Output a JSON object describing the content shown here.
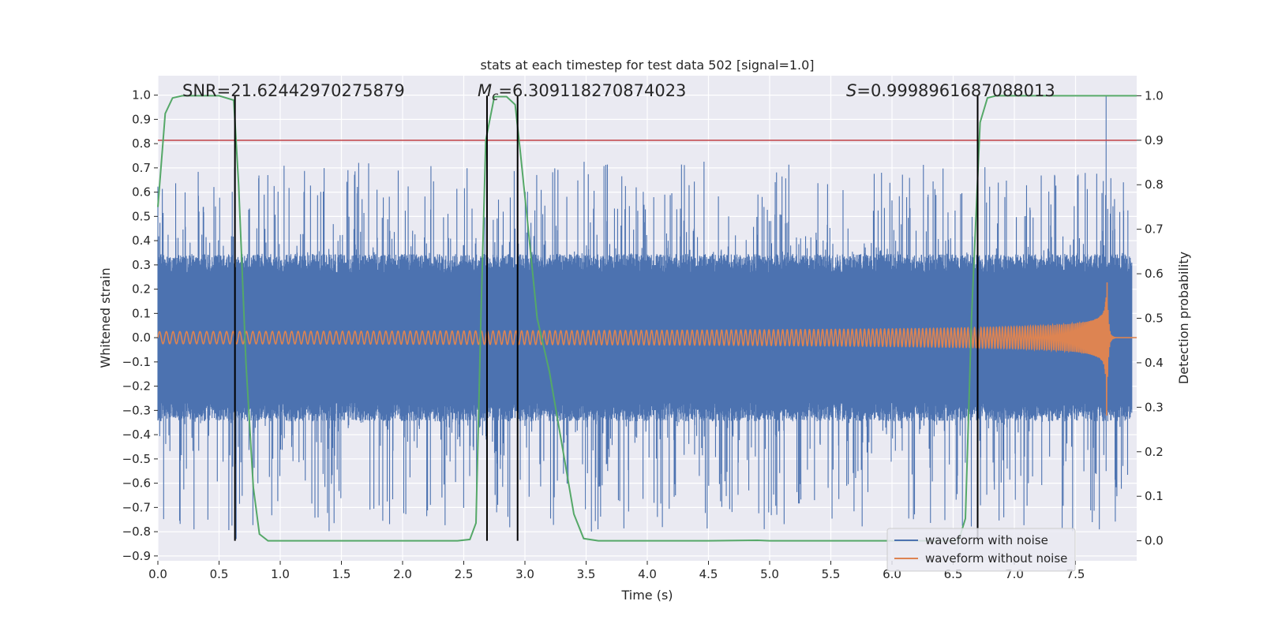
{
  "chart_data": {
    "type": "line",
    "title": "stats at each timestep for test data 502 [signal=1.0]",
    "xlabel": "Time (s)",
    "ylabel": "Whitened strain",
    "y2label": "Detection probability",
    "xlim": [
      0.0,
      8.0
    ],
    "ylim": [
      -0.92,
      1.08
    ],
    "y2lim": [
      -0.045,
      1.045
    ],
    "grid": true,
    "legend_position": "lower-right",
    "x_ticks": [
      "0.0",
      "0.5",
      "1.0",
      "1.5",
      "2.0",
      "2.5",
      "3.0",
      "3.5",
      "4.0",
      "4.5",
      "5.0",
      "5.5",
      "6.0",
      "6.5",
      "7.0",
      "7.5"
    ],
    "y_ticks": [
      "1.0",
      "0.9",
      "0.8",
      "0.7",
      "0.6",
      "0.5",
      "0.4",
      "0.3",
      "0.2",
      "0.1",
      "0.0",
      "−0.1",
      "−0.2",
      "−0.3",
      "−0.4",
      "−0.5",
      "−0.6",
      "−0.7",
      "−0.8",
      "−0.9"
    ],
    "y2_ticks": [
      "1.0",
      "0.9",
      "0.8",
      "0.7",
      "0.6",
      "0.5",
      "0.4",
      "0.3",
      "0.2",
      "0.1",
      "0.0"
    ],
    "annotations": {
      "snr": "SNR=21.62442970275879",
      "mc_symbol": "M",
      "mc_sub": "c",
      "mc_value": "=6.309118270874023",
      "s_symbol": "S",
      "s_value": "=0.9998961687088013"
    },
    "series": [
      {
        "name": "waveform with noise",
        "color": "#4c72b0",
        "description_values": "noise envelope approx ±0.3 to ±0.45, spikes up to 0.72 and down to -0.83; peak 1.0 at t≈7.75",
        "envelope_core": 0.3,
        "peak_points": [
          [
            7.75,
            1.0
          ],
          [
            0.64,
            -0.83
          ],
          [
            7.75,
            -0.55
          ]
        ]
      },
      {
        "name": "waveform without noise",
        "color": "#dd8452",
        "amplitude_start": 0.025,
        "amplitude_end": 0.45,
        "merger_time": 7.75,
        "freq_start_hz": 18,
        "freq_end_hz": 250
      },
      {
        "name": "detection probability",
        "color": "#55a868",
        "axis": "right",
        "points": [
          [
            0.0,
            0.75
          ],
          [
            0.06,
            0.96
          ],
          [
            0.12,
            0.995
          ],
          [
            0.2,
            1.0
          ],
          [
            0.5,
            1.0
          ],
          [
            0.62,
            0.99
          ],
          [
            0.66,
            0.8
          ],
          [
            0.72,
            0.4
          ],
          [
            0.78,
            0.12
          ],
          [
            0.83,
            0.015
          ],
          [
            0.9,
            0.0
          ],
          [
            1.5,
            0.0
          ],
          [
            2.0,
            0.0
          ],
          [
            2.45,
            0.0
          ],
          [
            2.55,
            0.003
          ],
          [
            2.6,
            0.04
          ],
          [
            2.64,
            0.5
          ],
          [
            2.68,
            0.9
          ],
          [
            2.75,
            0.998
          ],
          [
            2.85,
            0.998
          ],
          [
            2.92,
            0.98
          ],
          [
            2.96,
            0.88
          ],
          [
            3.02,
            0.72
          ],
          [
            3.1,
            0.5
          ],
          [
            3.2,
            0.38
          ],
          [
            3.3,
            0.22
          ],
          [
            3.4,
            0.06
          ],
          [
            3.48,
            0.005
          ],
          [
            3.6,
            0.0
          ],
          [
            4.5,
            0.0
          ],
          [
            4.9,
            0.001
          ],
          [
            5.0,
            0.0
          ],
          [
            6.5,
            0.0
          ],
          [
            6.55,
            0.005
          ],
          [
            6.6,
            0.05
          ],
          [
            6.65,
            0.5
          ],
          [
            6.72,
            0.94
          ],
          [
            6.78,
            0.995
          ],
          [
            6.85,
            1.0
          ],
          [
            8.0,
            1.0
          ]
        ]
      }
    ],
    "reference_lines": {
      "threshold_y2": 0.9,
      "threshold_color": "#c44e52",
      "vertical_lines_x": [
        0.63,
        2.69,
        2.94,
        6.7
      ],
      "vertical_color": "#000000"
    }
  }
}
